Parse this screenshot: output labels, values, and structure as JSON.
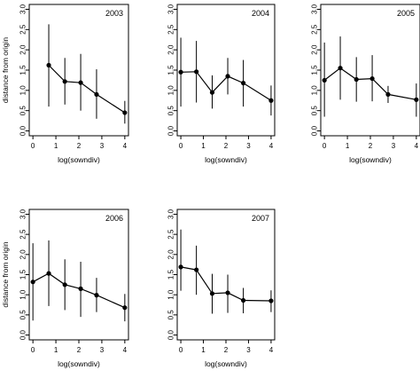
{
  "chart_data": [
    {
      "type": "line",
      "title": "2003",
      "xlabel": "log(sowndiv)",
      "ylabel": "distance from origin",
      "xlim": [
        0,
        4
      ],
      "ylim": [
        0,
        3
      ],
      "x_ticks": [
        "0",
        "1",
        "2",
        "3",
        "4"
      ],
      "y_ticks": [
        "0.0",
        "0.5",
        "1.0",
        "1.5",
        "2.0",
        "2.5",
        "3.0"
      ],
      "points": [
        {
          "x": 0.69,
          "y": 1.62,
          "low": 0.6,
          "high": 2.63
        },
        {
          "x": 1.39,
          "y": 1.22,
          "low": 0.65,
          "high": 1.8
        },
        {
          "x": 2.08,
          "y": 1.19,
          "low": 0.5,
          "high": 1.9
        },
        {
          "x": 2.77,
          "y": 0.9,
          "low": 0.3,
          "high": 1.52
        },
        {
          "x": 4.0,
          "y": 0.45,
          "low": 0.18,
          "high": 0.74
        }
      ]
    },
    {
      "type": "line",
      "title": "2004",
      "xlabel": "log(sowndiv)",
      "ylabel": "",
      "xlim": [
        0,
        4
      ],
      "ylim": [
        0,
        3
      ],
      "x_ticks": [
        "0",
        "1",
        "2",
        "3",
        "4"
      ],
      "y_ticks": [
        "0.0",
        "0.5",
        "1.0",
        "1.5",
        "2.0",
        "2.5",
        "3.0"
      ],
      "points": [
        {
          "x": 0,
          "y": 1.45,
          "low": 0.6,
          "high": 2.3
        },
        {
          "x": 0.69,
          "y": 1.46,
          "low": 0.7,
          "high": 2.22
        },
        {
          "x": 1.39,
          "y": 0.95,
          "low": 0.55,
          "high": 1.37
        },
        {
          "x": 2.08,
          "y": 1.35,
          "low": 0.9,
          "high": 1.8
        },
        {
          "x": 2.77,
          "y": 1.18,
          "low": 0.6,
          "high": 1.75
        },
        {
          "x": 4.0,
          "y": 0.75,
          "low": 0.38,
          "high": 1.12
        }
      ]
    },
    {
      "type": "line",
      "title": "2005",
      "xlabel": "log(sowndiv)",
      "ylabel": "",
      "xlim": [
        0,
        4
      ],
      "ylim": [
        0,
        3
      ],
      "x_ticks": [
        "0",
        "1",
        "2",
        "3",
        "4"
      ],
      "y_ticks": [
        "0.0",
        "0.5",
        "1.0",
        "1.5",
        "2.0",
        "2.5",
        "3.0"
      ],
      "points": [
        {
          "x": 0,
          "y": 1.25,
          "low": 0.35,
          "high": 2.18
        },
        {
          "x": 0.69,
          "y": 1.55,
          "low": 0.77,
          "high": 2.33
        },
        {
          "x": 1.39,
          "y": 1.27,
          "low": 0.72,
          "high": 1.82
        },
        {
          "x": 2.08,
          "y": 1.29,
          "low": 0.73,
          "high": 1.87
        },
        {
          "x": 2.77,
          "y": 0.9,
          "low": 0.69,
          "high": 1.11
        },
        {
          "x": 4.0,
          "y": 0.77,
          "low": 0.35,
          "high": 1.17
        }
      ]
    },
    {
      "type": "line",
      "title": "2006",
      "xlabel": "log(sowndiv)",
      "ylabel": "distance from origin",
      "xlim": [
        0,
        4
      ],
      "ylim": [
        0,
        3
      ],
      "x_ticks": [
        "0",
        "1",
        "2",
        "3",
        "4"
      ],
      "y_ticks": [
        "0.0",
        "0.5",
        "1.0",
        "1.5",
        "2.0",
        "2.5",
        "3.0"
      ],
      "points": [
        {
          "x": 0,
          "y": 1.32,
          "low": 0.36,
          "high": 2.28
        },
        {
          "x": 0.69,
          "y": 1.53,
          "low": 0.72,
          "high": 2.35
        },
        {
          "x": 1.39,
          "y": 1.25,
          "low": 0.62,
          "high": 1.88
        },
        {
          "x": 2.08,
          "y": 1.15,
          "low": 0.45,
          "high": 1.82
        },
        {
          "x": 2.77,
          "y": 0.99,
          "low": 0.57,
          "high": 1.42
        },
        {
          "x": 4.0,
          "y": 0.68,
          "low": 0.34,
          "high": 1.02
        }
      ]
    },
    {
      "type": "line",
      "title": "2007",
      "xlabel": "log(sowndiv)",
      "ylabel": "",
      "xlim": [
        0,
        4
      ],
      "ylim": [
        0,
        3
      ],
      "x_ticks": [
        "0",
        "1",
        "2",
        "3",
        "4"
      ],
      "y_ticks": [
        "0.0",
        "0.5",
        "1.0",
        "1.5",
        "2.0",
        "2.5",
        "3.0"
      ],
      "points": [
        {
          "x": 0,
          "y": 1.69,
          "low": 1.1,
          "high": 2.62
        },
        {
          "x": 0.69,
          "y": 1.62,
          "low": 1.0,
          "high": 2.22
        },
        {
          "x": 1.39,
          "y": 1.03,
          "low": 0.53,
          "high": 1.52
        },
        {
          "x": 2.08,
          "y": 1.05,
          "low": 0.55,
          "high": 1.5
        },
        {
          "x": 2.77,
          "y": 0.86,
          "low": 0.54,
          "high": 1.17
        },
        {
          "x": 4.0,
          "y": 0.85,
          "low": 0.57,
          "high": 1.11
        }
      ]
    }
  ]
}
